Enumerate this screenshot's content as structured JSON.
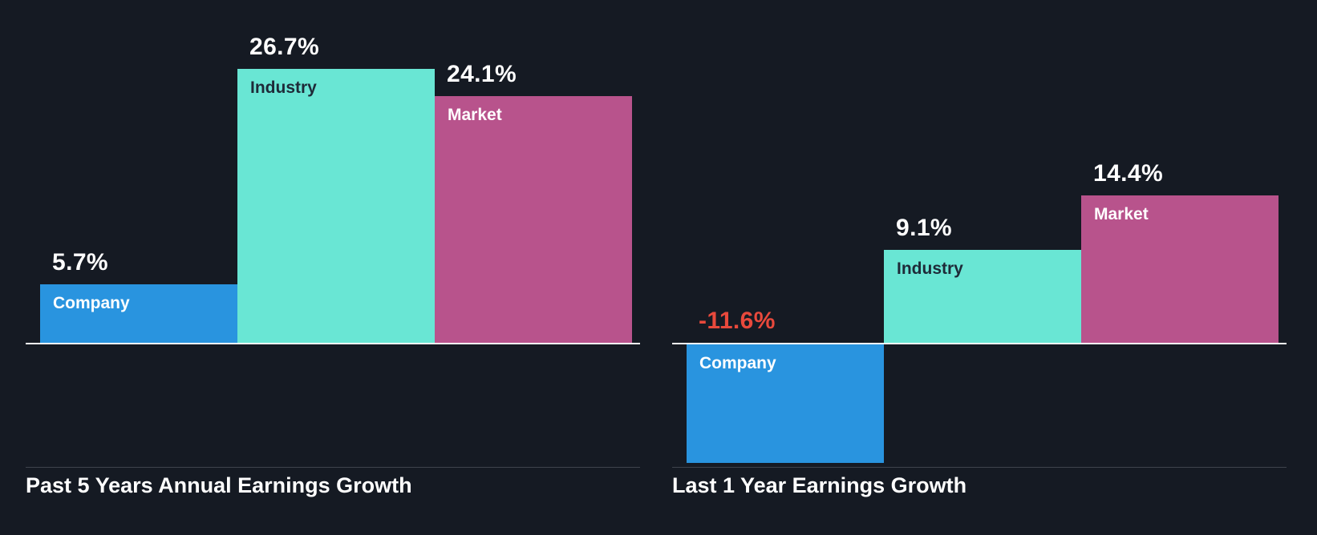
{
  "page": {
    "background_color": "#151a23",
    "baseline_color": "#ffffff",
    "divider_color": "#3e444d",
    "title_color": "#ffffff"
  },
  "chart_data": [
    {
      "type": "bar",
      "title": "Past 5 Years Annual Earnings Growth",
      "categories": [
        "Company",
        "Industry",
        "Market"
      ],
      "values": [
        5.7,
        26.7,
        24.1
      ],
      "value_labels": [
        "5.7%",
        "26.7%",
        "24.1%"
      ],
      "bar_colors": [
        "#2994df",
        "#69e6d4",
        "#b8538c"
      ],
      "category_label_colors": [
        "#ffffff",
        "#1e2a38",
        "#ffffff"
      ],
      "value_label_color": "#ffffff",
      "negative_value_label_color": "#e8493c",
      "baseline": 0,
      "ylim": [
        -13,
        28
      ],
      "grid": false,
      "legend": false,
      "axes_visible": false
    },
    {
      "type": "bar",
      "title": "Last 1 Year Earnings Growth",
      "categories": [
        "Company",
        "Industry",
        "Market"
      ],
      "values": [
        -11.6,
        9.1,
        14.4
      ],
      "value_labels": [
        "-11.6%",
        "9.1%",
        "14.4%"
      ],
      "bar_colors": [
        "#2994df",
        "#69e6d4",
        "#b8538c"
      ],
      "category_label_colors": [
        "#ffffff",
        "#1e2a38",
        "#ffffff"
      ],
      "value_label_color": "#ffffff",
      "negative_value_label_color": "#e8493c",
      "baseline": 0,
      "ylim": [
        -13,
        28
      ],
      "grid": false,
      "legend": false,
      "axes_visible": false
    }
  ]
}
